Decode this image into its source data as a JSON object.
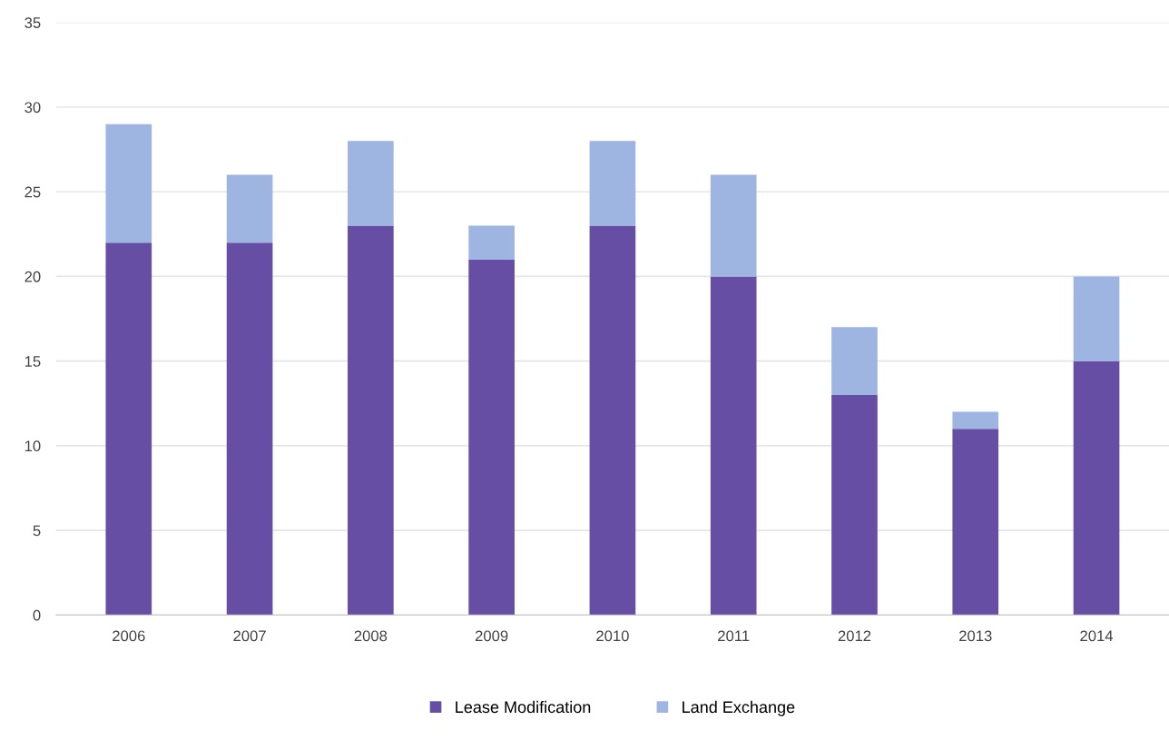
{
  "chart_data": {
    "type": "bar",
    "stacked": true,
    "categories": [
      "2006",
      "2007",
      "2008",
      "2009",
      "2010",
      "2011",
      "2012",
      "2013",
      "2014"
    ],
    "series": [
      {
        "name": "Lease Modification",
        "color": "#654ea3",
        "values": [
          22,
          22,
          23,
          21,
          23,
          20,
          13,
          11,
          15
        ]
      },
      {
        "name": "Land Exchange",
        "color": "#9db5e0",
        "values": [
          7,
          4,
          5,
          2,
          5,
          6,
          4,
          1,
          5
        ]
      }
    ],
    "ylim": [
      0,
      35
    ],
    "yticks": [
      0,
      5,
      10,
      15,
      20,
      25,
      30,
      35
    ],
    "grid": "y",
    "legend": "bottom"
  }
}
